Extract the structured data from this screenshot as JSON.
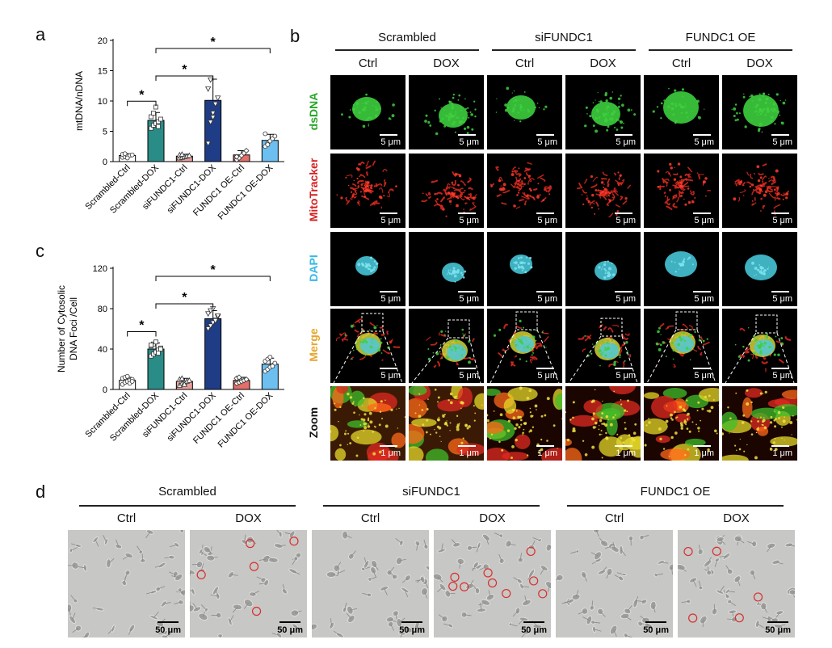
{
  "panels": {
    "a": {
      "letter": "a"
    },
    "b": {
      "letter": "b"
    },
    "c": {
      "letter": "c"
    },
    "d": {
      "letter": "d"
    }
  },
  "chart_data": [
    {
      "type": "bar",
      "panel": "a",
      "ylabel": "mtDNA/nDNA",
      "ylim": [
        0,
        20
      ],
      "yticks": [
        0,
        5,
        10,
        15,
        20
      ],
      "categories": [
        "Scrambled-Ctrl",
        "Scrambled-DOX",
        "siFUNDC1-Ctrl",
        "siFUNDC1-DOX",
        "FUNDC1 OE-Ctrl",
        "FUNDC1 OE-DOX"
      ],
      "values": [
        1.0,
        6.8,
        0.9,
        10.1,
        1.1,
        3.5
      ],
      "errors": [
        0.3,
        1.3,
        0.3,
        3.5,
        0.7,
        1.0
      ],
      "bar_colors": [
        "#ffffff",
        "#2a8c86",
        "#e9a09d",
        "#1f3c86",
        "#e46e69",
        "#6dbff0"
      ],
      "points": [
        [
          0.7,
          0.8,
          0.9,
          1.0,
          1.1,
          1.2,
          1.3,
          0.6
        ],
        [
          5.5,
          6.0,
          6.3,
          6.6,
          7.0,
          7.4,
          8.0,
          9.0,
          5.8
        ],
        [
          0.6,
          0.7,
          0.8,
          0.9,
          1.0,
          1.1,
          1.2
        ],
        [
          3.0,
          6.5,
          8.0,
          9.5,
          10.5,
          12.0,
          13.5,
          7.3
        ],
        [
          0.3,
          0.6,
          1.0,
          1.4,
          1.8,
          0.8
        ],
        [
          2.5,
          3.0,
          3.4,
          3.8,
          4.2,
          4.6,
          2.8
        ]
      ],
      "significance": [
        {
          "from": 0,
          "to": 1,
          "label": "*"
        },
        {
          "from": 1,
          "to": 3,
          "label": "*"
        },
        {
          "from": 1,
          "to": 5,
          "label": "*"
        }
      ]
    },
    {
      "type": "bar",
      "panel": "c",
      "ylabel": "Number of Cytosolic\nDNA Foci /Cell",
      "ylim": [
        0,
        120
      ],
      "yticks": [
        0,
        40,
        80,
        120
      ],
      "categories": [
        "Scrambled-Ctrl",
        "Scrambled-DOX",
        "siFUNDC1-Ctrl",
        "siFUNDC1-DOX",
        "FUNDC1 OE-Ctrl",
        "FUNDC1 OE-DOX"
      ],
      "values": [
        9,
        40,
        8,
        70,
        9,
        25
      ],
      "errors": [
        3,
        6,
        3,
        8,
        3,
        6
      ],
      "bar_colors": [
        "#ffffff",
        "#2a8c86",
        "#e9a09d",
        "#1f3c86",
        "#e46e69",
        "#6dbff0"
      ],
      "points": [
        [
          5,
          7,
          8,
          9,
          10,
          11,
          12,
          13,
          6,
          8
        ],
        [
          33,
          35,
          37,
          39,
          41,
          43,
          45,
          47,
          36,
          40,
          44
        ],
        [
          4,
          6,
          7,
          8,
          9,
          10,
          11,
          5
        ],
        [
          60,
          63,
          66,
          69,
          72,
          75,
          78,
          80,
          68,
          73
        ],
        [
          6,
          7,
          8,
          9,
          10,
          11,
          12
        ],
        [
          18,
          20,
          22,
          24,
          26,
          28,
          30,
          32,
          23
        ]
      ],
      "significance": [
        {
          "from": 0,
          "to": 1,
          "label": "*"
        },
        {
          "from": 1,
          "to": 3,
          "label": "*"
        },
        {
          "from": 1,
          "to": 5,
          "label": "*"
        }
      ]
    }
  ],
  "microscopy": {
    "groups": [
      "Scrambled",
      "siFUNDC1",
      "FUNDC1 OE"
    ],
    "conditions": [
      "Ctrl",
      "DOX",
      "Ctrl",
      "DOX",
      "Ctrl",
      "DOX"
    ],
    "rows": [
      {
        "label": "dsDNA",
        "color": "#2aa52a",
        "scale": "5 μm"
      },
      {
        "label": "MitoTracker",
        "color": "#d42020",
        "scale": "5 μm"
      },
      {
        "label": "DAPI",
        "color": "#35b8e8",
        "scale": "5 μm"
      },
      {
        "label": "Merge",
        "color": "#e5a62e",
        "scale": "5 μm"
      },
      {
        "label": "Zoom",
        "color": "#111111",
        "scale": "1 μm"
      }
    ]
  },
  "brightfield": {
    "groups": [
      "Scrambled",
      "siFUNDC1",
      "FUNDC1 OE"
    ],
    "conditions": [
      "Ctrl",
      "DOX",
      "Ctrl",
      "DOX",
      "Ctrl",
      "DOX"
    ],
    "scale": "50 μm"
  }
}
